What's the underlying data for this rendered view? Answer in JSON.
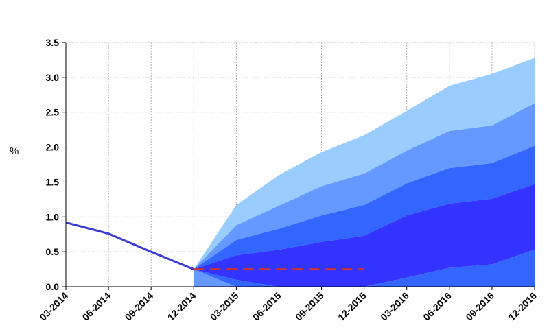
{
  "chart_data": {
    "type": "area",
    "title": "",
    "xlabel": "",
    "ylabel": "%",
    "ylim": [
      0,
      3.5
    ],
    "y_ticks": [
      "0.0",
      "0.5",
      "1.0",
      "1.5",
      "2.0",
      "2.5",
      "3.0",
      "3.5"
    ],
    "y_tick_values": [
      0,
      0.5,
      1.0,
      1.5,
      2.0,
      2.5,
      3.0,
      3.5
    ],
    "categories": [
      "03-2014",
      "06-2014",
      "09-2014",
      "12-2014",
      "03-2015",
      "06-2015",
      "09-2015",
      "12-2015",
      "03-2016",
      "06-2016",
      "09-2016",
      "12-2016"
    ],
    "grid": true,
    "history_line": {
      "color": "#3a3ad6",
      "values": [
        0.92,
        0.76,
        0.5,
        0.25
      ]
    },
    "policy_rate_line": {
      "color": "#cc3333",
      "style": "dashed",
      "start_index": 3,
      "values": [
        0.25,
        0.25,
        0.25,
        0.25,
        0.25
      ]
    },
    "fan_bands": {
      "start_index": 3,
      "colors": [
        "#99ccff",
        "#6699ff",
        "#3366ff",
        "#3333ff",
        "#3366ff",
        "#6699ff"
      ],
      "boundaries": [
        [
          0.25,
          1.17,
          1.6,
          1.93,
          2.17,
          2.52,
          2.88,
          3.05,
          3.28
        ],
        [
          0.25,
          0.88,
          1.16,
          1.44,
          1.62,
          1.95,
          2.23,
          2.31,
          2.63
        ],
        [
          0.25,
          0.67,
          0.83,
          1.02,
          1.17,
          1.48,
          1.7,
          1.77,
          2.02
        ],
        [
          0.25,
          0.45,
          0.53,
          0.64,
          0.73,
          1.02,
          1.19,
          1.26,
          1.47
        ],
        [
          0.25,
          0.1,
          0.0,
          0.0,
          0.0,
          0.13,
          0.27,
          0.32,
          0.53
        ],
        [
          0.25,
          0.0,
          0.0,
          0.0,
          0.0,
          0.0,
          0.0,
          0.0,
          0.0
        ]
      ]
    }
  }
}
